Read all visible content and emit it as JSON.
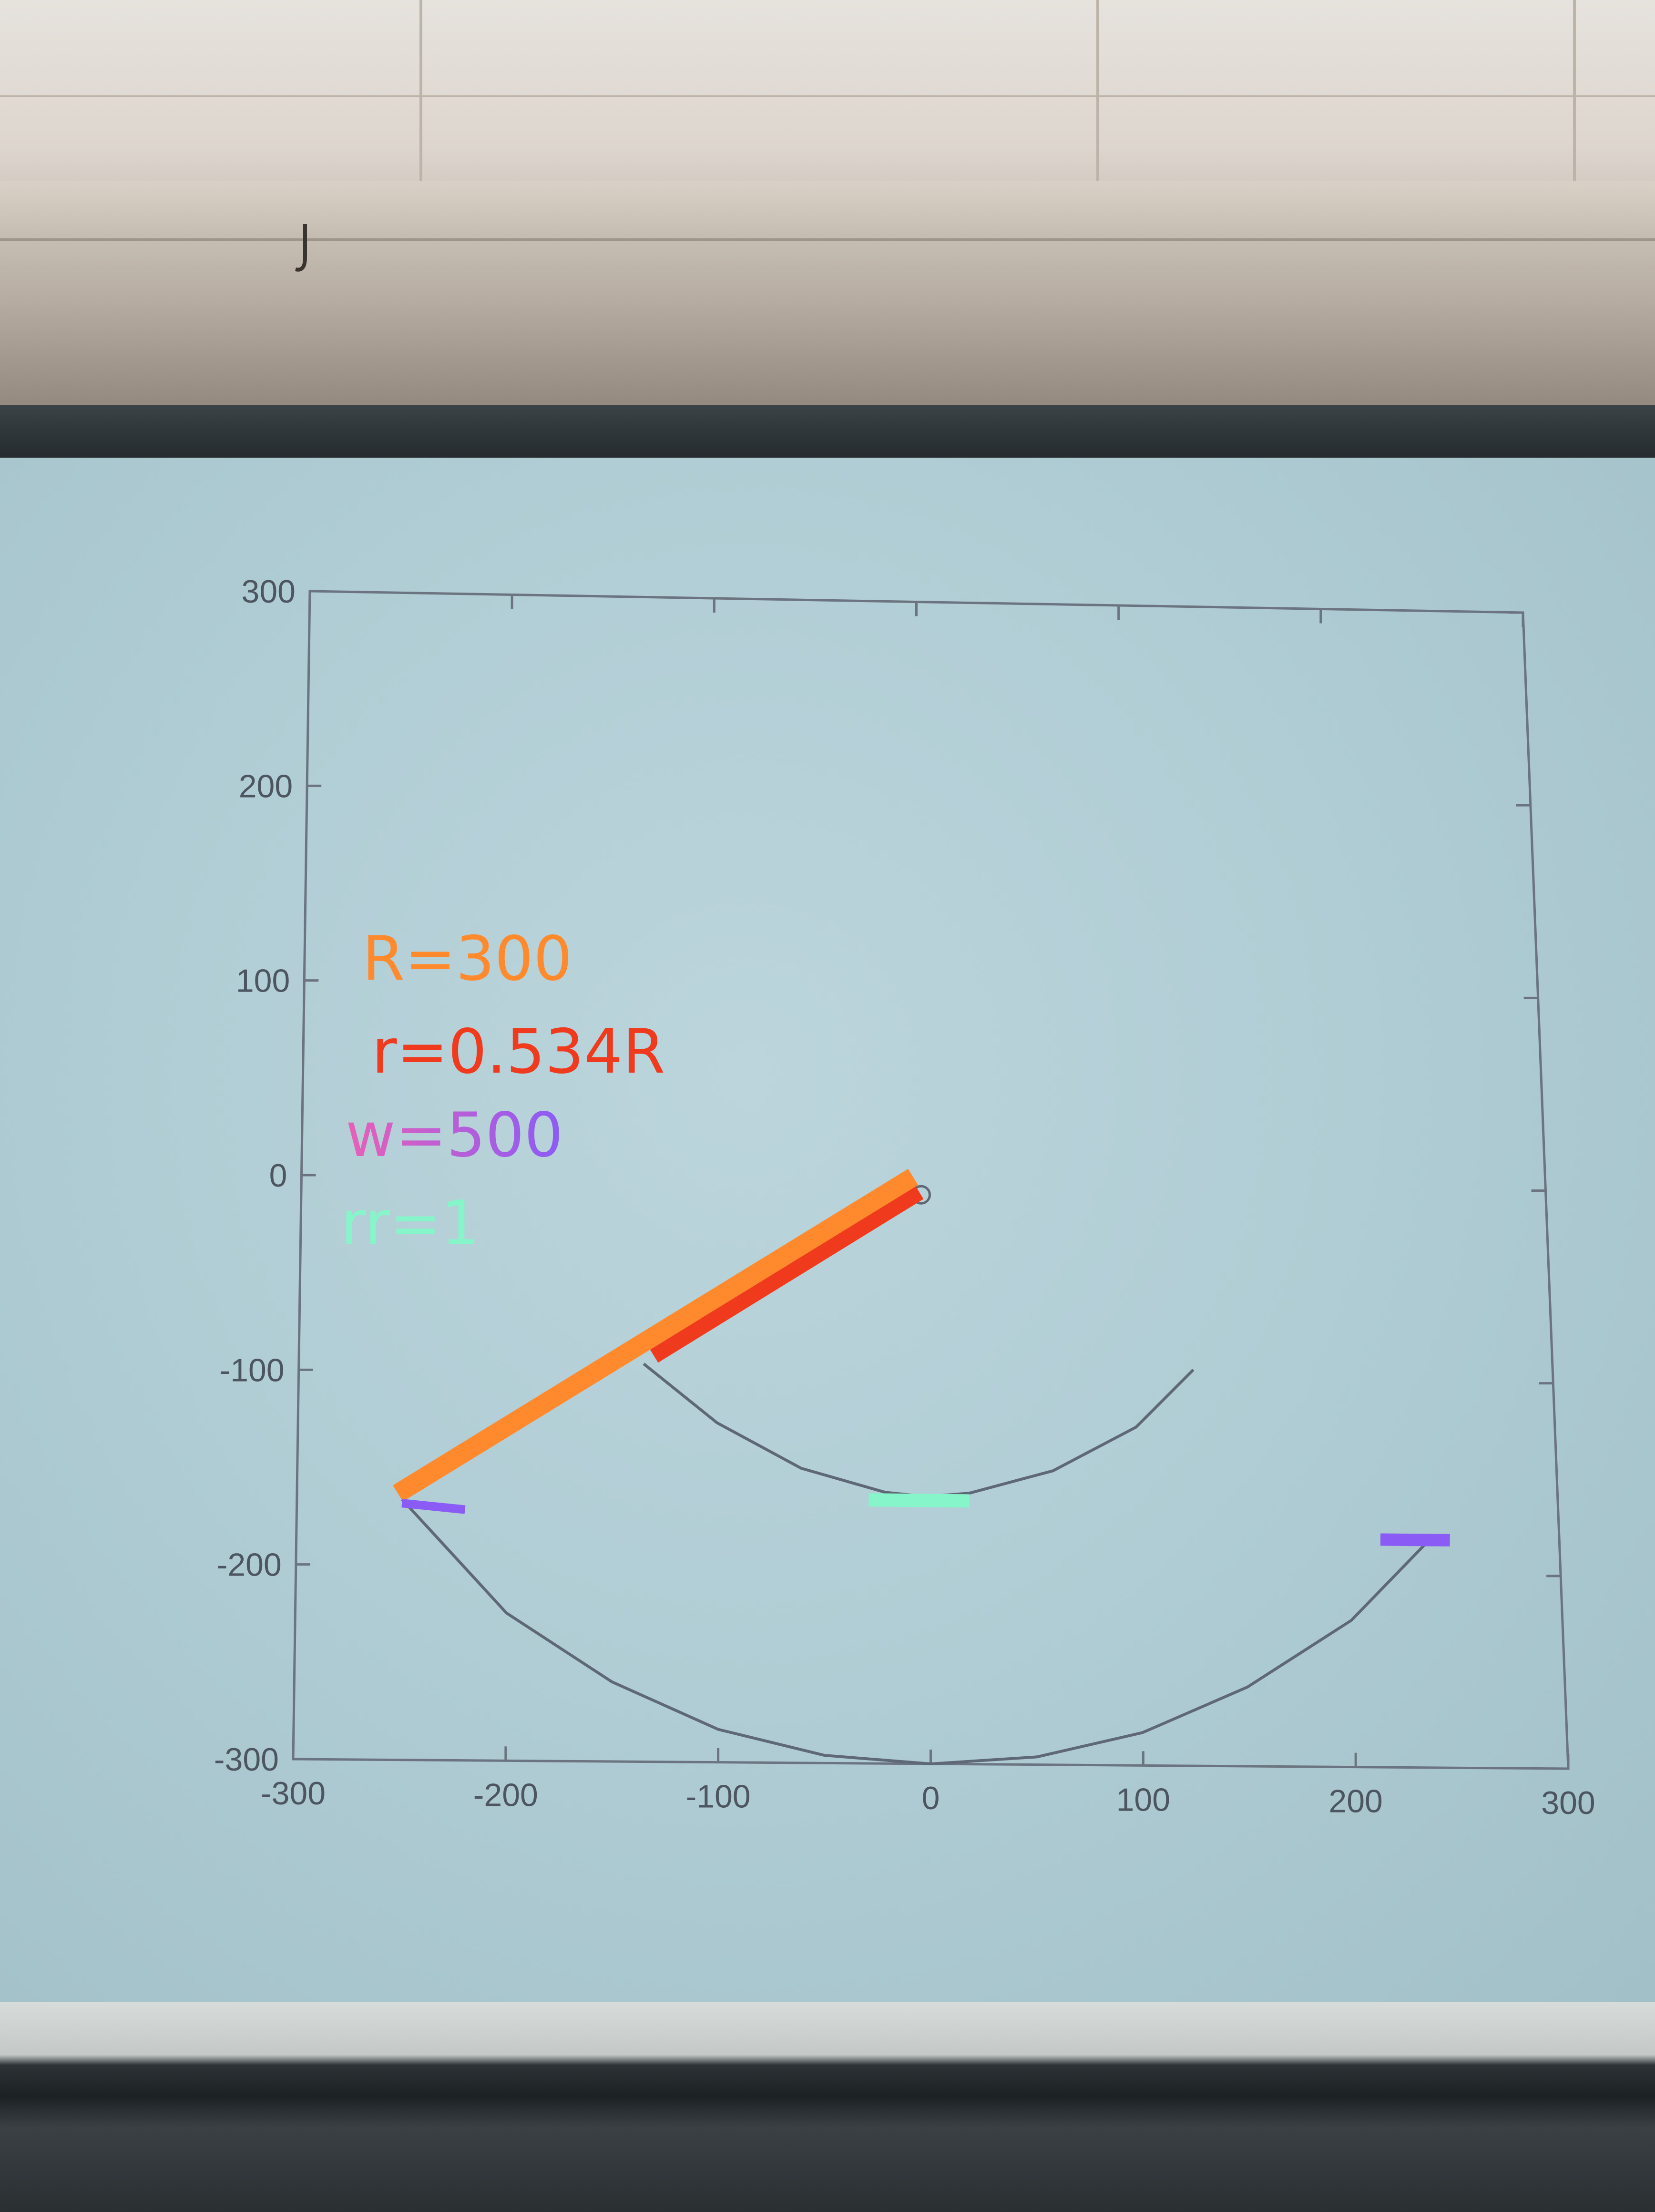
{
  "scene": {
    "description_tag": "photo-of-projected-matlab-plot"
  },
  "chart_data": {
    "type": "line",
    "title": "",
    "xlabel": "",
    "ylabel": "",
    "xlim": [
      -300,
      300
    ],
    "ylim": [
      -300,
      300
    ],
    "xticks": [
      "-300",
      "-200",
      "-100",
      "0",
      "100",
      "200",
      "300"
    ],
    "yticks": [
      "300",
      "200",
      "100",
      "0",
      "-100",
      "-200",
      "-300"
    ],
    "grid": false,
    "series": [
      {
        "x": [
          -250,
          -200,
          -150,
          -100,
          -50,
          0,
          50,
          100,
          150,
          200,
          240
        ],
        "y": [
          -166,
          -224,
          -259,
          -283,
          -296,
          -300,
          -296,
          -283,
          -259,
          -224,
          -180
        ]
      },
      {
        "x": [
          -135,
          -100,
          -60,
          -20,
          0,
          20,
          60,
          100,
          128
        ],
        "y": [
          -95,
          -125,
          -148,
          -160,
          -162,
          -160,
          -148,
          -125,
          -95
        ]
      }
    ],
    "annotations": {
      "R": "R=300",
      "r": "r=0.534R",
      "w": "w=500",
      "rr": "rr=1"
    },
    "marker_colors": {
      "orange": "#ff8a2e",
      "red": "#f03a1e",
      "purple": "#8a5cf5",
      "mint": "#86f5c9",
      "pink": "#e860b8"
    }
  }
}
